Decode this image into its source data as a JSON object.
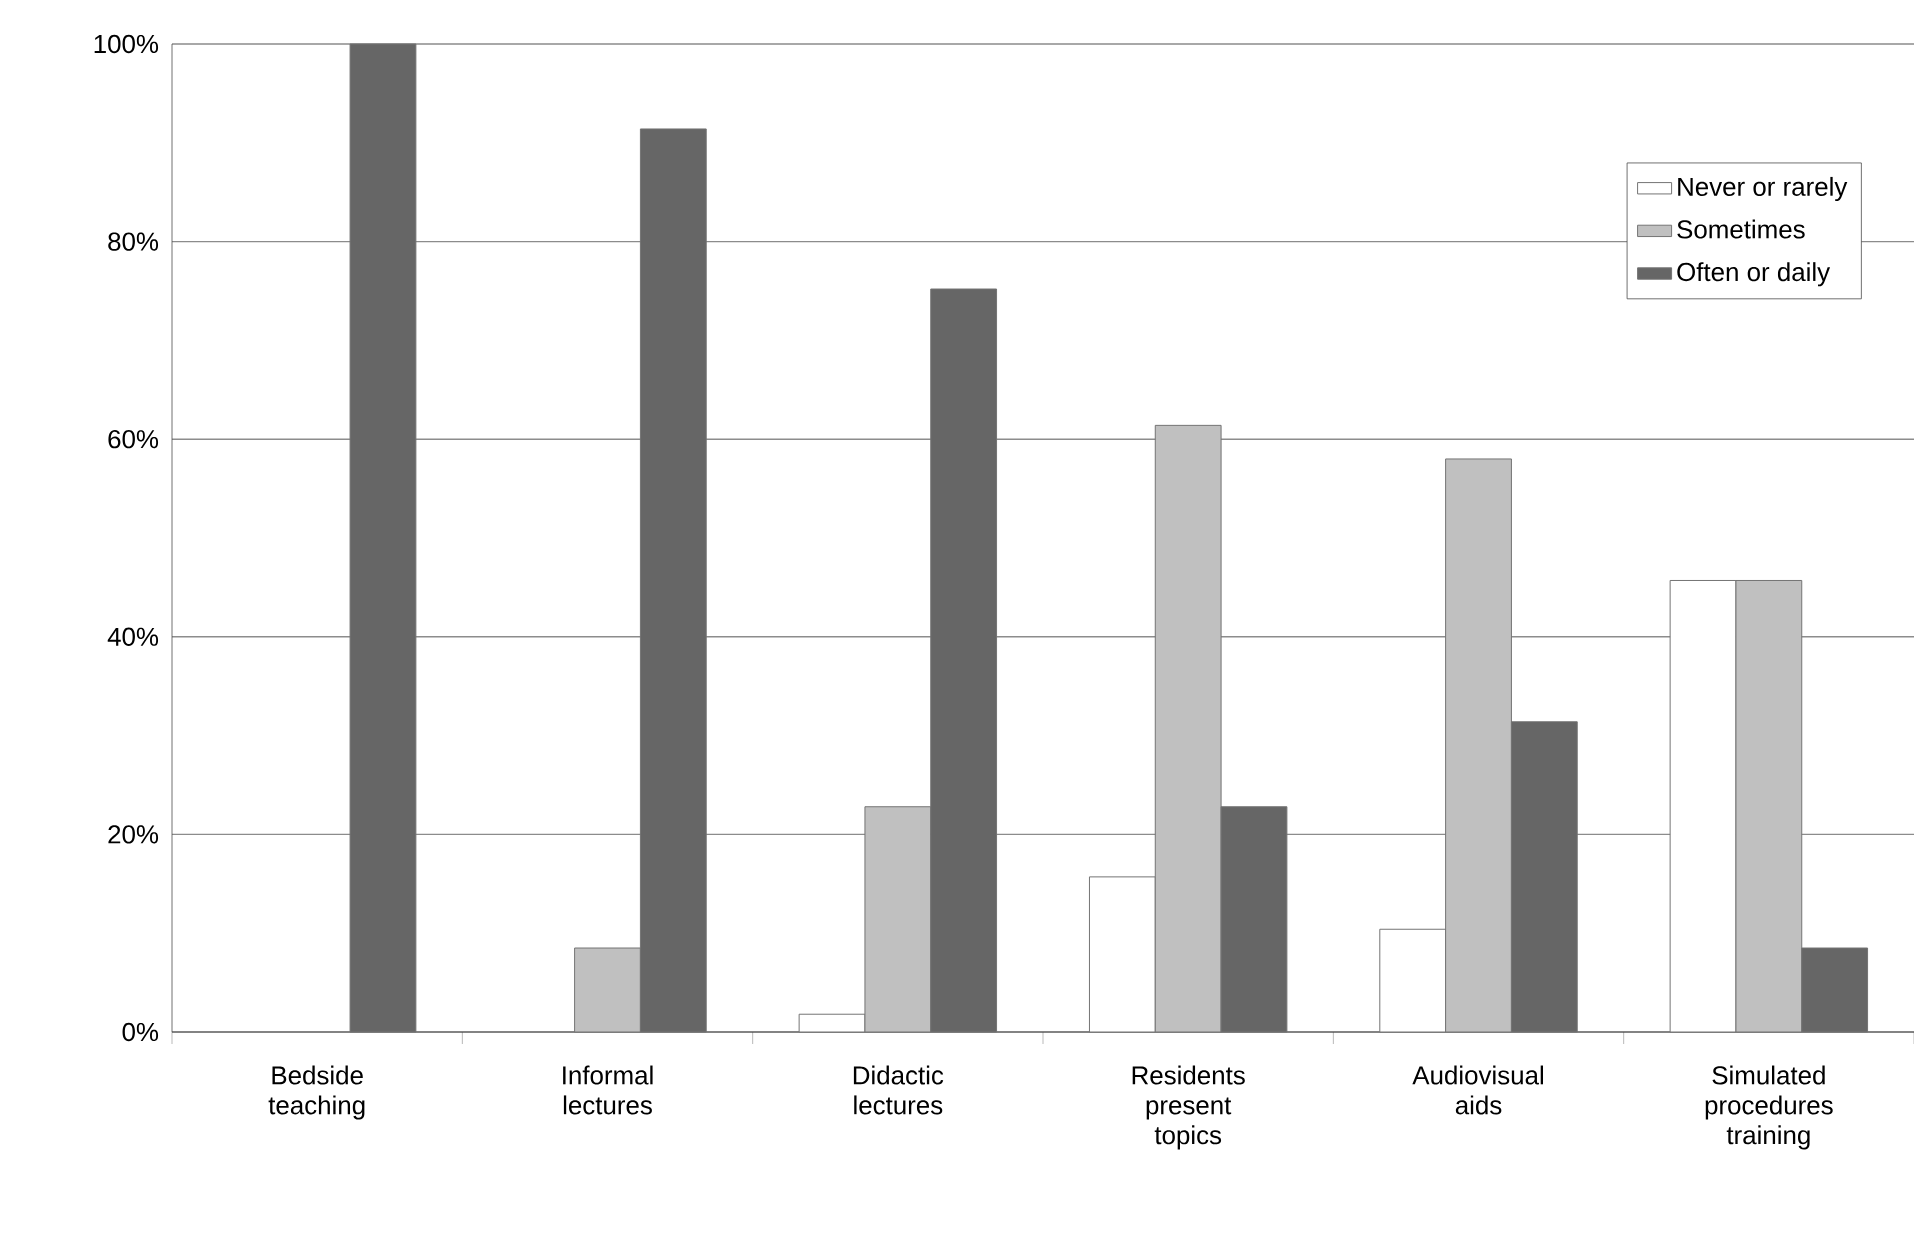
{
  "chart_data": {
    "type": "bar",
    "categories": [
      "Bedside teaching",
      "Informal lectures",
      "Didactic lectures",
      "Residents present topics",
      "Audiovisual aids",
      "Simulated procedures training"
    ],
    "series": [
      {
        "name": "Never or rarely",
        "color": "#ffffff",
        "values": [
          0,
          0,
          1.8,
          15.7,
          10.4,
          45.7
        ]
      },
      {
        "name": "Sometimes",
        "color": "#c0c0c0",
        "values": [
          0,
          8.5,
          22.8,
          61.4,
          58,
          45.7
        ]
      },
      {
        "name": "Often or daily",
        "color": "#666666",
        "values": [
          100,
          91.4,
          75.2,
          22.8,
          31.4,
          8.5
        ]
      }
    ],
    "ylim": [
      0,
      100
    ],
    "yticks": [
      {
        "value": 0,
        "label": "0%"
      },
      {
        "value": 20,
        "label": "20%"
      },
      {
        "value": 40,
        "label": "40%"
      },
      {
        "value": 60,
        "label": "60%"
      },
      {
        "value": 80,
        "label": "80%"
      },
      {
        "value": 100,
        "label": "100%"
      }
    ],
    "grid": "y",
    "legend": "top right"
  }
}
